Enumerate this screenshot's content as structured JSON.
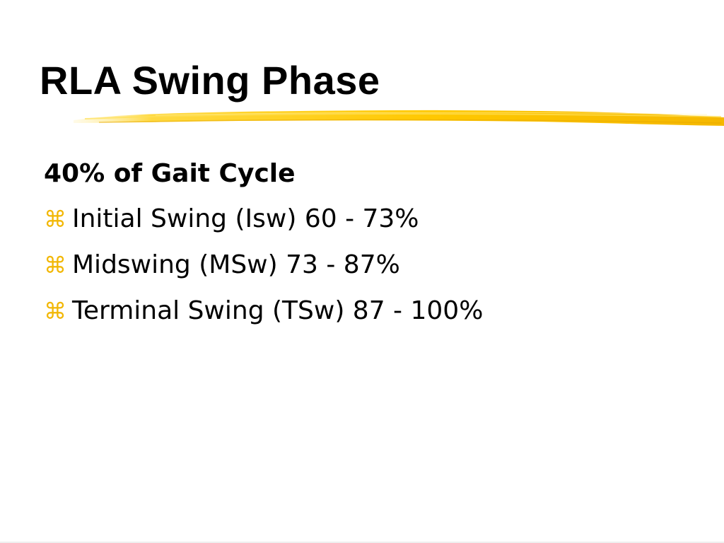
{
  "slide": {
    "title": "RLA Swing Phase",
    "accent_color": "#f2b705",
    "lead": "40% of Gait Cycle",
    "bullet_icon": "place-of-interest-icon",
    "bullet_glyph": "⌘",
    "bullets": [
      {
        "text": "Initial Swing (Isw) 60 - 73%"
      },
      {
        "text": "Midswing (MSw) 73 - 87%"
      },
      {
        "text": "Terminal Swing (TSw) 87 - 100%"
      }
    ]
  }
}
